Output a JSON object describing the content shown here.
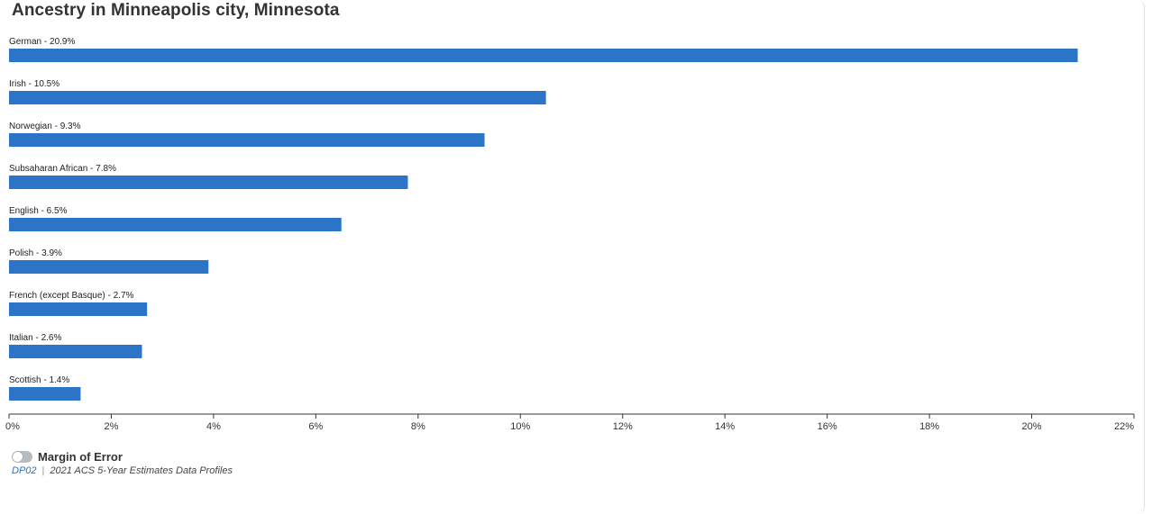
{
  "title": "Ancestry in Minneapolis city, Minnesota",
  "chart_data": {
    "type": "bar",
    "orientation": "horizontal",
    "categories": [
      "German",
      "Irish",
      "Norwegian",
      "Subsaharan African",
      "English",
      "Polish",
      "French (except Basque)",
      "Italian",
      "Scottish"
    ],
    "values": [
      20.9,
      10.5,
      9.3,
      7.8,
      6.5,
      3.9,
      2.7,
      2.6,
      1.4
    ],
    "labels": [
      "German - 20.9%",
      "Irish - 10.5%",
      "Norwegian - 9.3%",
      "Subsaharan African - 7.8%",
      "English - 6.5%",
      "Polish - 3.9%",
      "French (except Basque) - 2.7%",
      "Italian - 2.6%",
      "Scottish - 1.4%"
    ],
    "xlim": [
      0,
      22
    ],
    "xticks": [
      "0%",
      "2%",
      "4%",
      "6%",
      "8%",
      "10%",
      "12%",
      "14%",
      "16%",
      "18%",
      "20%",
      "22%"
    ],
    "grid": false,
    "bar_color": "#2b74c8"
  },
  "margin_of_error": {
    "label": "Margin of Error",
    "enabled": false
  },
  "source": {
    "code": "DP02",
    "separator": "|",
    "text": "2021 ACS 5-Year Estimates Data Profiles"
  }
}
